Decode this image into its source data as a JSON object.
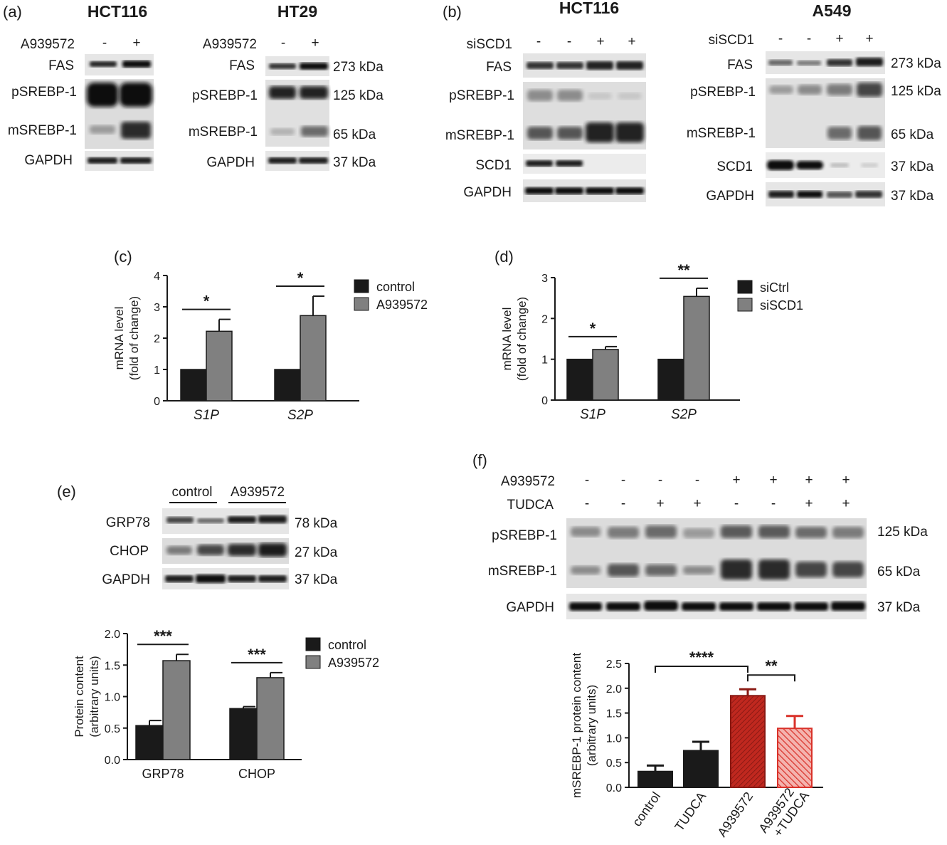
{
  "panels": {
    "a": {
      "label": "(a)",
      "blot_left": {
        "cell_line": "HCT116",
        "treatment_label": "A939572",
        "lanes": [
          "-",
          "+"
        ],
        "rows": [
          "FAS",
          "pSREBP-1",
          "mSREBP-1",
          "GAPDH"
        ]
      },
      "blot_right": {
        "cell_line": "HT29",
        "treatment_label": "A939572",
        "lanes": [
          "-",
          "+"
        ],
        "rows": [
          "FAS",
          "pSREBP-1",
          "mSREBP-1",
          "GAPDH"
        ],
        "sizes": [
          "273 kDa",
          "125 kDa",
          "65 kDa",
          "37 kDa"
        ]
      }
    },
    "b": {
      "label": "(b)",
      "blot_left": {
        "cell_line": "HCT116",
        "treatment_label": "siSCD1",
        "lanes": [
          "-",
          "-",
          "+",
          "+"
        ],
        "rows": [
          "FAS",
          "pSREBP-1",
          "mSREBP-1",
          "SCD1",
          "GAPDH"
        ]
      },
      "blot_right": {
        "cell_line": "A549",
        "treatment_label": "siSCD1",
        "lanes": [
          "-",
          "-",
          "+",
          "+"
        ],
        "rows": [
          "FAS",
          "pSREBP-1",
          "mSREBP-1",
          "SCD1",
          "GAPDH"
        ],
        "sizes": [
          "273 kDa",
          "125 kDa",
          "65 kDa",
          "37 kDa",
          "37 kDa"
        ]
      }
    },
    "e": {
      "label": "(e)",
      "group_labels": [
        "control",
        "A939572"
      ],
      "rows": [
        "GRP78",
        "CHOP",
        "GAPDH"
      ],
      "sizes": [
        "78 kDa",
        "27 kDa",
        "37 kDa"
      ]
    },
    "f": {
      "label": "(f)",
      "treatments": [
        {
          "name": "A939572",
          "lanes": [
            "-",
            "-",
            "-",
            "-",
            "+",
            "+",
            "+",
            "+"
          ]
        },
        {
          "name": "TUDCA",
          "lanes": [
            "-",
            "-",
            "+",
            "+",
            "-",
            "-",
            "+",
            "+"
          ]
        }
      ],
      "rows": [
        "pSREBP-1",
        "mSREBP-1",
        "GAPDH"
      ],
      "sizes": [
        "125 kDa",
        "65 kDa",
        "37 kDa"
      ]
    }
  },
  "chart_data": [
    {
      "panel": "(c)",
      "type": "bar",
      "categories": [
        "S1P",
        "S2P"
      ],
      "series": [
        {
          "name": "control",
          "color": "#1a1a1a",
          "values": [
            1.0,
            1.0
          ],
          "errors": [
            0,
            0
          ]
        },
        {
          "name": "A939572",
          "color": "#808080",
          "values": [
            2.22,
            2.72
          ],
          "errors": [
            0.38,
            0.62
          ]
        }
      ],
      "ylabel": "mRNA level\n(fold of change)",
      "ylim": [
        0,
        4
      ],
      "yticks": [
        "0",
        "1",
        "2",
        "3",
        "4"
      ],
      "significance": [
        "*",
        "*"
      ],
      "legend": "top-right"
    },
    {
      "panel": "(d)",
      "type": "bar",
      "categories": [
        "S1P",
        "S2P"
      ],
      "series": [
        {
          "name": "siCtrl",
          "color": "#1a1a1a",
          "values": [
            1.0,
            1.0
          ],
          "errors": [
            0,
            0
          ]
        },
        {
          "name": "siSCD1",
          "color": "#808080",
          "values": [
            1.24,
            2.54
          ],
          "errors": [
            0.07,
            0.2
          ]
        }
      ],
      "ylabel": "mRNA level\n(fold of change)",
      "ylim": [
        0,
        3
      ],
      "yticks": [
        "0",
        "1",
        "2",
        "3"
      ],
      "significance": [
        "*",
        "**"
      ],
      "legend": "top-right"
    },
    {
      "panel": "(e)",
      "type": "bar",
      "categories": [
        "GRP78",
        "CHOP"
      ],
      "series": [
        {
          "name": "control",
          "color": "#1a1a1a",
          "values": [
            0.54,
            0.81
          ],
          "errors": [
            0.08,
            0.03
          ]
        },
        {
          "name": "A939572",
          "color": "#808080",
          "values": [
            1.57,
            1.3
          ],
          "errors": [
            0.1,
            0.08
          ]
        }
      ],
      "ylabel": "Protein content\n(arbitrary units)",
      "ylim": [
        0,
        2.0
      ],
      "yticks": [
        "0.0",
        "0.5",
        "1.0",
        "1.5",
        "2.0"
      ],
      "significance": [
        "***",
        "***"
      ],
      "legend": "top-right"
    },
    {
      "panel": "(f)",
      "type": "bar",
      "categories": [
        "control",
        "TUDCA",
        "A939572",
        "A939572\n+TUDCA"
      ],
      "series": [
        {
          "values": [
            0.32,
            0.74,
            1.85,
            1.19
          ],
          "errors": [
            0.12,
            0.18,
            0.13,
            0.25
          ],
          "colors": [
            "#1a1a1a",
            "#1a1a1a",
            "#c0281f",
            "#e35a55"
          ]
        }
      ],
      "ylabel": "mSREBP-1 protein content\n(arbitrary units)",
      "ylim": [
        0,
        2.5
      ],
      "yticks": [
        "0.0",
        "0.5",
        "1.0",
        "1.5",
        "2.0",
        "2.5"
      ],
      "significance": [
        {
          "from": "control",
          "to": "A939572",
          "label": "****"
        },
        {
          "from": "A939572",
          "to": "A939572\n+TUDCA",
          "label": "**"
        }
      ]
    }
  ]
}
